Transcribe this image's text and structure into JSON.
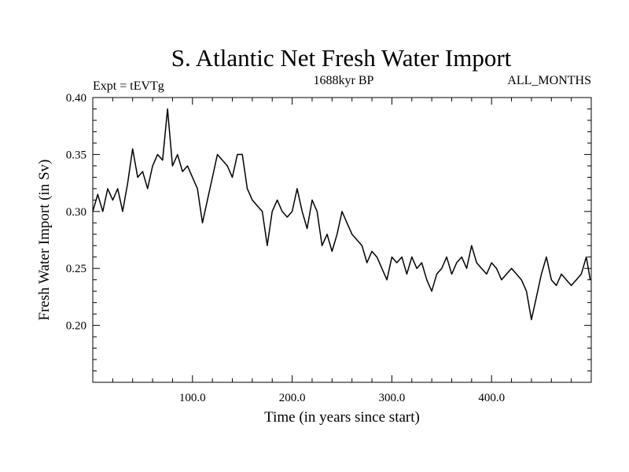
{
  "chart_data": {
    "type": "line",
    "title": "S. Atlantic Net Fresh Water Import",
    "subtitle_left": "Expt = tEVTg",
    "subtitle_center": "1688kyr BP",
    "subtitle_right": "ALL_MONTHS",
    "xlabel": "Time (in years since start)",
    "ylabel": "Fresh Water Import (in Sv)",
    "xlim": [
      0,
      500
    ],
    "ylim": [
      0.15,
      0.4
    ],
    "xticks": [
      100,
      200,
      300,
      400
    ],
    "xtick_labels": [
      "100.0",
      "200.0",
      "300.0",
      "400.0"
    ],
    "yticks": [
      0.2,
      0.25,
      0.3,
      0.35,
      0.4
    ],
    "ytick_labels": [
      "0.20",
      "0.25",
      "0.30",
      "0.35",
      "0.40"
    ],
    "series": [
      {
        "name": "S. Atlantic Net Fresh Water Import",
        "x": [
          0,
          5,
          10,
          15,
          20,
          25,
          30,
          35,
          40,
          45,
          50,
          55,
          60,
          65,
          70,
          75,
          80,
          85,
          90,
          95,
          100,
          105,
          110,
          115,
          120,
          125,
          130,
          135,
          140,
          145,
          150,
          155,
          160,
          165,
          170,
          175,
          180,
          185,
          190,
          195,
          200,
          205,
          210,
          215,
          220,
          225,
          230,
          235,
          240,
          245,
          250,
          255,
          260,
          265,
          270,
          275,
          280,
          285,
          290,
          295,
          300,
          305,
          310,
          315,
          320,
          325,
          330,
          335,
          340,
          345,
          350,
          355,
          360,
          365,
          370,
          375,
          380,
          385,
          390,
          395,
          400,
          405,
          410,
          415,
          420,
          425,
          430,
          435,
          440,
          445,
          450,
          455,
          460,
          465,
          470,
          475,
          480,
          485,
          490,
          495,
          499
        ],
        "values": [
          0.3,
          0.315,
          0.3,
          0.32,
          0.31,
          0.32,
          0.3,
          0.325,
          0.355,
          0.33,
          0.335,
          0.32,
          0.34,
          0.35,
          0.345,
          0.39,
          0.34,
          0.35,
          0.335,
          0.34,
          0.33,
          0.32,
          0.29,
          0.31,
          0.33,
          0.35,
          0.345,
          0.34,
          0.33,
          0.35,
          0.35,
          0.32,
          0.31,
          0.305,
          0.3,
          0.27,
          0.3,
          0.31,
          0.3,
          0.295,
          0.3,
          0.32,
          0.3,
          0.285,
          0.31,
          0.3,
          0.27,
          0.28,
          0.265,
          0.28,
          0.3,
          0.29,
          0.28,
          0.275,
          0.27,
          0.255,
          0.265,
          0.26,
          0.25,
          0.24,
          0.26,
          0.255,
          0.26,
          0.245,
          0.26,
          0.25,
          0.255,
          0.24,
          0.23,
          0.245,
          0.25,
          0.26,
          0.245,
          0.255,
          0.26,
          0.25,
          0.27,
          0.255,
          0.25,
          0.245,
          0.255,
          0.25,
          0.24,
          0.245,
          0.25,
          0.245,
          0.24,
          0.23,
          0.205,
          0.225,
          0.245,
          0.26,
          0.24,
          0.235,
          0.245,
          0.24,
          0.235,
          0.24,
          0.245,
          0.26,
          0.24
        ]
      }
    ],
    "line_color": "#000000"
  }
}
